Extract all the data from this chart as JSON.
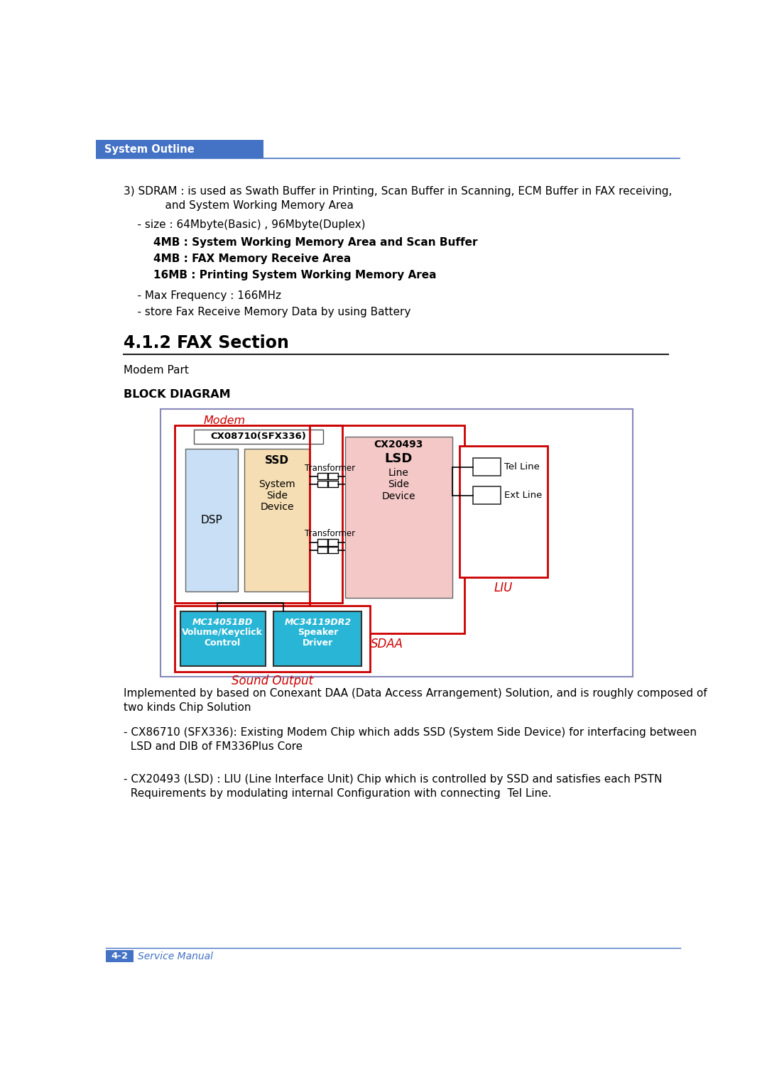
{
  "bg_color": "#ffffff",
  "header_bg": "#4472c4",
  "header_text": "System Outline",
  "header_text_color": "#ffffff",
  "header_line_color": "#4472c4",
  "section_title": "4.1.2 FAX Section",
  "modem_part_label": "Modem Part",
  "block_diagram_label": "BLOCK DIAGRAM",
  "footer_text": "Service Manual",
  "footer_label": "4-2",
  "footer_color": "#4472c4",
  "body_text_color": "#000000",
  "red_color": "#cc0000",
  "cyan_color": "#29b6d6",
  "light_blue_fill": "#c8dff5",
  "light_orange_fill": "#f5deb3",
  "light_pink_fill": "#f5c8c8",
  "outer_box_border": "#8888bb",
  "sdram_line1": "3) SDRAM : is used as Swath Buffer in Printing, Scan Buffer in Scanning, ECM Buffer in FAX receiving,",
  "sdram_line2": "            and System Working Memory Area",
  "sdram_size": "    - size : 64Mbyte(Basic) , 96Mbyte(Duplex)",
  "sdram_4mb1": "        4MB : System Working Memory Area and Scan Buffer",
  "sdram_4mb2": "        4MB : FAX Memory Receive Area",
  "sdram_16mb": "        16MB : Printing System Working Memory Area",
  "sdram_freq": "    - Max Frequency : 166MHz",
  "sdram_store": "    - store Fax Receive Memory Data by using Battery",
  "impl_text1": "Implemented by based on Conexant DAA (Data Access Arrangement) Solution, and is roughly composed of",
  "impl_text2": "two kinds Chip Solution",
  "cx86_text1": "- CX86710 (SFX336): Existing Modem Chip which adds SSD (System Side Device) for interfacing between",
  "cx86_text2": "  LSD and DIB of FM336Plus Core",
  "cx20_text1": "- CX20493 (LSD) : LIU (Line Interface Unit) Chip which is controlled by SSD and satisfies each PSTN",
  "cx20_text2": "  Requirements by modulating internal Configuration with connecting  Tel Line."
}
